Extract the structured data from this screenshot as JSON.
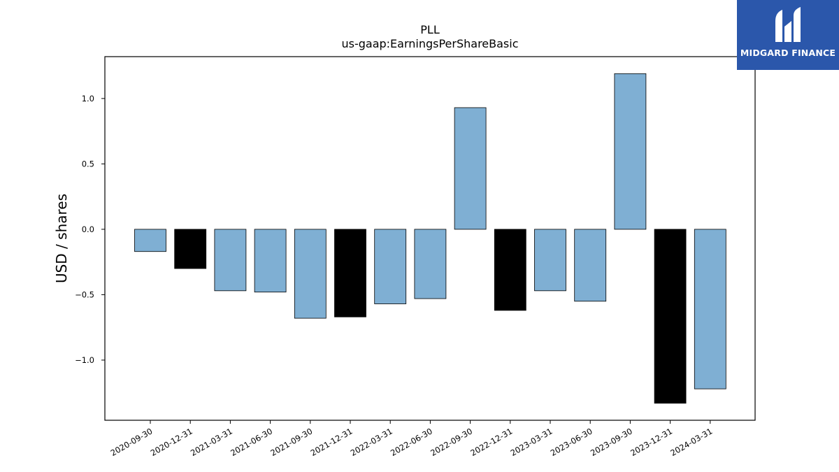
{
  "brand": {
    "name": "MIDGARD FINANCE",
    "background": "#2b57ab"
  },
  "chart_data": {
    "type": "bar",
    "title": "PLL",
    "subtitle": "us-gaap:EarningsPerShareBasic",
    "xlabel": "",
    "ylabel": "USD / shares",
    "ylim": [
      -1.46,
      1.32
    ],
    "yticks": [
      -1.0,
      -0.5,
      0.0,
      0.5,
      1.0
    ],
    "ytick_labels": [
      "−1.0",
      "−0.5",
      "0.0",
      "0.5",
      "1.0"
    ],
    "grid": false,
    "categories": [
      "2020-09-30",
      "2020-12-31",
      "2021-03-31",
      "2021-06-30",
      "2021-09-30",
      "2021-12-31",
      "2022-03-31",
      "2022-06-30",
      "2022-09-30",
      "2022-12-31",
      "2023-03-31",
      "2023-06-30",
      "2023-09-30",
      "2023-12-31",
      "2024-03-31"
    ],
    "values": [
      -0.17,
      -0.3,
      -0.47,
      -0.48,
      -0.68,
      -0.67,
      -0.57,
      -0.53,
      0.93,
      -0.62,
      -0.47,
      -0.55,
      1.19,
      -1.33,
      -1.22
    ],
    "bar_colors": [
      "#7fafd3",
      "#000000",
      "#7fafd3",
      "#7fafd3",
      "#7fafd3",
      "#000000",
      "#7fafd3",
      "#7fafd3",
      "#7fafd3",
      "#000000",
      "#7fafd3",
      "#7fafd3",
      "#7fafd3",
      "#000000",
      "#7fafd3"
    ],
    "colors": {
      "quarter": "#7fafd3",
      "year_end": "#000000",
      "edge": "#000000"
    }
  }
}
